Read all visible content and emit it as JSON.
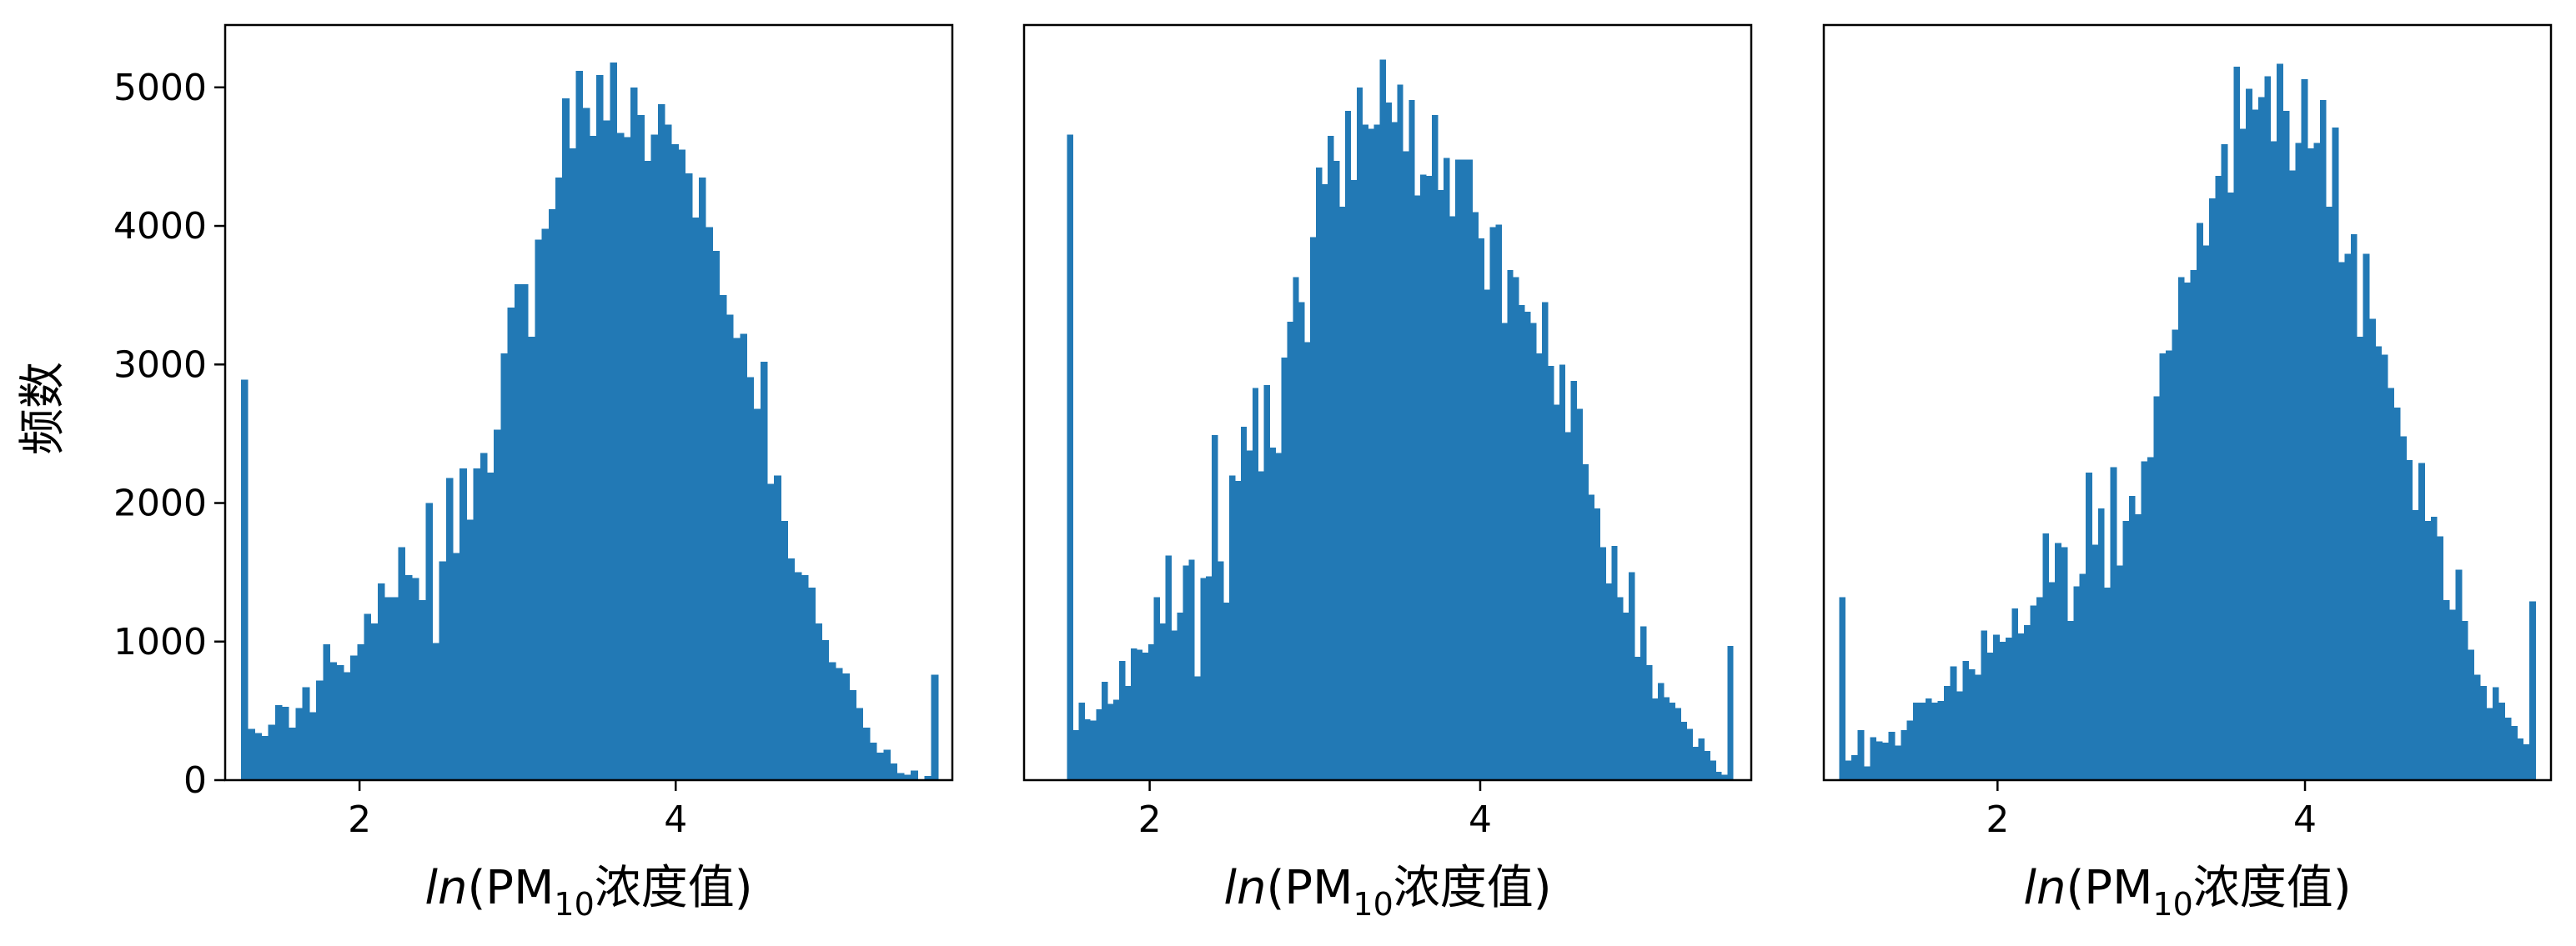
{
  "figure": {
    "ylabel": "频数"
  },
  "colors": {
    "bar": "#2279b5",
    "axes": "#000000"
  },
  "chart_data": [
    {
      "type": "bar",
      "xlabel": {
        "pre": "ln",
        "mid": "(PM",
        "sub": "10",
        "post": "浓度值)"
      },
      "ylabel": "频数",
      "xlim": [
        1.15,
        5.75
      ],
      "ylim": [
        0,
        5450
      ],
      "xticks": [
        2,
        4
      ],
      "yticks": [
        0,
        1000,
        2000,
        3000,
        4000,
        5000
      ],
      "bin_range": [
        1.25,
        5.66
      ],
      "values": [
        2890,
        370,
        340,
        320,
        400,
        540,
        530,
        380,
        520,
        670,
        490,
        720,
        980,
        850,
        830,
        780,
        900,
        980,
        1200,
        1130,
        1420,
        1320,
        1320,
        1680,
        1480,
        1460,
        1300,
        2000,
        990,
        1580,
        2180,
        1640,
        2250,
        1880,
        2250,
        2360,
        2220,
        2530,
        3080,
        3410,
        3580,
        3580,
        3200,
        3900,
        3980,
        4120,
        4350,
        4920,
        4560,
        5120,
        4850,
        4650,
        5090,
        4760,
        5180,
        4670,
        4640,
        5000,
        4800,
        4470,
        4660,
        4880,
        4730,
        4590,
        4550,
        4380,
        4060,
        4350,
        3990,
        3820,
        3500,
        3360,
        3190,
        3220,
        2910,
        2680,
        3020,
        2140,
        2200,
        1870,
        1600,
        1500,
        1480,
        1390,
        1130,
        1010,
        850,
        810,
        770,
        650,
        520,
        380,
        270,
        200,
        220,
        120,
        50,
        40,
        70,
        0,
        30,
        760
      ]
    },
    {
      "type": "bar",
      "xlabel": {
        "pre": "ln",
        "mid": "(PM",
        "sub": "10",
        "post": "浓度值)"
      },
      "xlim": [
        1.24,
        5.64
      ],
      "ylim": [
        0,
        5450
      ],
      "xticks": [
        2,
        4
      ],
      "bin_range": [
        1.5,
        5.53
      ],
      "values": [
        4660,
        360,
        560,
        440,
        430,
        510,
        710,
        550,
        580,
        860,
        680,
        950,
        940,
        920,
        980,
        1320,
        1130,
        1620,
        1080,
        1210,
        1550,
        1590,
        750,
        1460,
        1470,
        2490,
        1580,
        1280,
        2200,
        2160,
        2550,
        2380,
        2830,
        2230,
        2850,
        2400,
        2360,
        3050,
        3310,
        3630,
        3450,
        3160,
        3920,
        4420,
        4300,
        4650,
        4470,
        4140,
        4830,
        4330,
        5000,
        4730,
        4700,
        4730,
        5200,
        4890,
        4750,
        5020,
        4540,
        4910,
        4220,
        4370,
        4360,
        4800,
        4260,
        4490,
        4070,
        4480,
        4480,
        4480,
        4100,
        3910,
        3540,
        3990,
        4010,
        3300,
        3680,
        3630,
        3430,
        3380,
        3300,
        3080,
        3450,
        2990,
        2710,
        3000,
        2510,
        2880,
        2680,
        2280,
        2060,
        1960,
        1680,
        1420,
        1690,
        1320,
        1210,
        1500,
        890,
        1110,
        830,
        590,
        700,
        600,
        560,
        520,
        420,
        370,
        240,
        300,
        210,
        140,
        60,
        40,
        970
      ]
    },
    {
      "type": "bar",
      "xlabel": {
        "pre": "ln",
        "mid": "(PM",
        "sub": "10",
        "post": "浓度值)"
      },
      "xlim": [
        0.87,
        5.6
      ],
      "ylim": [
        0,
        5450
      ],
      "xticks": [
        2,
        4
      ],
      "bin_range": [
        0.97,
        5.5
      ],
      "values": [
        1320,
        140,
        180,
        360,
        100,
        310,
        280,
        270,
        350,
        250,
        360,
        430,
        560,
        560,
        590,
        560,
        570,
        680,
        820,
        640,
        860,
        800,
        760,
        1080,
        920,
        1050,
        1000,
        1030,
        1240,
        1060,
        1120,
        1260,
        1320,
        1780,
        1430,
        1710,
        1680,
        1150,
        1400,
        1490,
        2220,
        1700,
        1960,
        1390,
        2260,
        1550,
        1870,
        2050,
        1920,
        2300,
        2330,
        2770,
        3080,
        3100,
        3250,
        3630,
        3590,
        3680,
        4020,
        3860,
        4200,
        4360,
        4590,
        4240,
        5150,
        4700,
        4990,
        4840,
        4930,
        5080,
        4610,
        5170,
        4830,
        4400,
        4600,
        5060,
        4560,
        4600,
        4910,
        4140,
        4710,
        3740,
        3800,
        3940,
        3200,
        3800,
        3330,
        3130,
        3070,
        2830,
        2690,
        2480,
        2310,
        1950,
        2290,
        1870,
        1900,
        1760,
        1300,
        1230,
        1520,
        1150,
        940,
        760,
        680,
        520,
        670,
        560,
        450,
        390,
        300,
        260,
        1290
      ]
    }
  ]
}
